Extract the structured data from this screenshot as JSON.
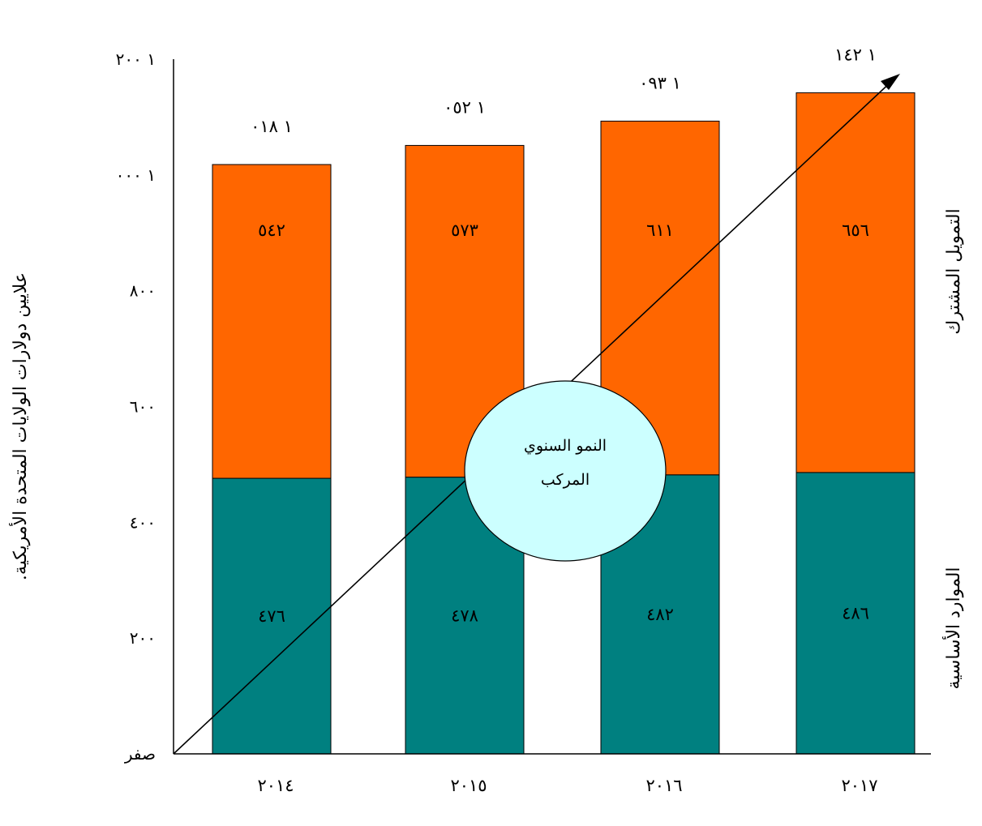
{
  "chart_data": {
    "type": "bar",
    "stacked": true,
    "categories": [
      "٢٠١٤",
      "٢٠١٥",
      "٢٠١٦",
      "٢٠١٧"
    ],
    "series": [
      {
        "name": "الموارد الأساسية",
        "values": [
          476,
          478,
          482,
          486
        ],
        "value_labels": [
          "٤٧٦",
          "٤٧٨",
          "٤٨٢",
          "٤٨٦"
        ],
        "color": "#008080"
      },
      {
        "name": "التمويل المشترك",
        "values": [
          542,
          573,
          611,
          656
        ],
        "value_labels": [
          "٥٤٢",
          "٥٧٣",
          "٦١١",
          "٦٥٦"
        ],
        "color": "#ff6600"
      }
    ],
    "totals": [
      1018,
      1052,
      1093,
      1142
    ],
    "total_labels": [
      "١ ٠١٨",
      "١ ٠٥٢",
      "١ ٠٩٣",
      "١ ١٤٢"
    ],
    "ylabel": "علايين دولارات الولايات المتحدة الأمريكية.",
    "ylim": [
      0,
      1200
    ],
    "y_ticks": [
      0,
      200,
      400,
      600,
      800,
      1000,
      1200
    ],
    "y_tick_labels": [
      "صفر",
      "٢٠٠",
      "٤٠٠",
      "٦٠٠",
      "٨٠٠",
      "١ ٠٠٠",
      "١ ٢٠٠"
    ],
    "grid": false,
    "legend_placement": "right",
    "annotation": {
      "text_line1": "النمو السنوي",
      "text_line2": "المركب",
      "bubble_color": "#ccffff",
      "arrow": "diagonal growth arrow from origin to top-right"
    }
  }
}
